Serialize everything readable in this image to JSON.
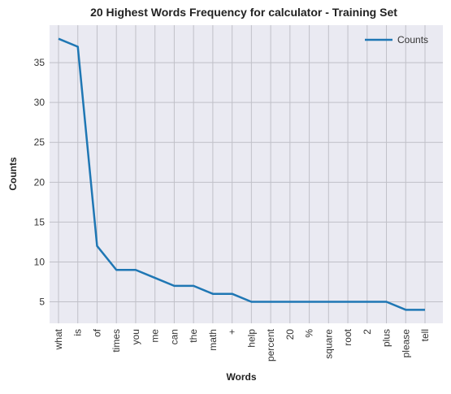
{
  "chart_data": {
    "type": "line",
    "title": "20 Highest Words Frequency for calculator - Training Set",
    "xlabel": "Words",
    "ylabel": "Counts",
    "categories": [
      "what",
      "is",
      "of",
      "times",
      "you",
      "me",
      "can",
      "the",
      "math",
      "+",
      "help",
      "percent",
      "20",
      "%",
      "square",
      "root",
      "2",
      "plus",
      "please",
      "tell"
    ],
    "series": [
      {
        "name": "Counts",
        "values": [
          38,
          37,
          12,
          9,
          9,
          8,
          7,
          7,
          6,
          6,
          5,
          5,
          5,
          5,
          5,
          5,
          5,
          5,
          4,
          4
        ]
      }
    ],
    "yticks": [
      5,
      10,
      15,
      20,
      25,
      30,
      35
    ],
    "ylim": [
      2.3,
      39.7
    ],
    "grid": true,
    "legend": "top-right",
    "colors": {
      "line": "#1f77b4",
      "plot_bg": "#eaeaf2",
      "grid": "#c0c0c8"
    }
  }
}
